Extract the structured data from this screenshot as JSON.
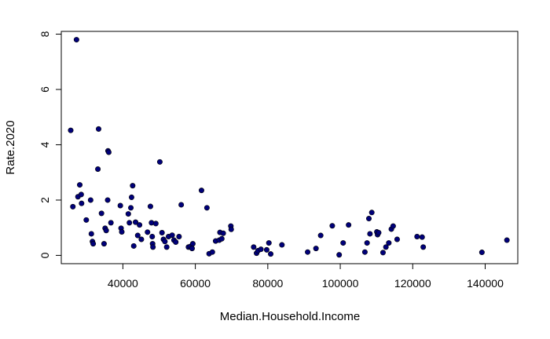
{
  "chart_data": {
    "type": "scatter",
    "xlabel": "Median.Household.Income",
    "ylabel": "Rate.2020",
    "xlim": [
      23000,
      149000
    ],
    "ylim": [
      -0.3,
      8.1
    ],
    "xticks": [
      40000,
      60000,
      80000,
      100000,
      120000,
      140000
    ],
    "yticks": [
      0,
      2,
      4,
      6,
      8
    ],
    "grid": false,
    "legend": "none",
    "point_color": "#00007a",
    "points": [
      [
        25600,
        4.52
      ],
      [
        26200,
        1.76
      ],
      [
        27200,
        7.8
      ],
      [
        27600,
        2.12
      ],
      [
        28100,
        2.55
      ],
      [
        28500,
        2.2
      ],
      [
        28600,
        1.88
      ],
      [
        29900,
        1.28
      ],
      [
        31100,
        2.0
      ],
      [
        31300,
        0.78
      ],
      [
        31600,
        0.5
      ],
      [
        31800,
        0.42
      ],
      [
        33100,
        3.12
      ],
      [
        33300,
        4.57
      ],
      [
        34100,
        1.52
      ],
      [
        34800,
        0.42
      ],
      [
        35100,
        0.98
      ],
      [
        35400,
        0.9
      ],
      [
        35800,
        2.0
      ],
      [
        35900,
        3.78
      ],
      [
        36100,
        3.73
      ],
      [
        36700,
        1.18
      ],
      [
        39300,
        1.8
      ],
      [
        39500,
        0.98
      ],
      [
        39700,
        0.85
      ],
      [
        41500,
        1.5
      ],
      [
        41800,
        1.18
      ],
      [
        42200,
        1.72
      ],
      [
        42400,
        2.1
      ],
      [
        42700,
        2.52
      ],
      [
        43000,
        0.34
      ],
      [
        43500,
        1.2
      ],
      [
        44100,
        0.72
      ],
      [
        44600,
        1.1
      ],
      [
        45100,
        0.58
      ],
      [
        46800,
        0.84
      ],
      [
        47600,
        1.77
      ],
      [
        47900,
        1.18
      ],
      [
        48100,
        0.68
      ],
      [
        48200,
        0.42
      ],
      [
        48300,
        0.3
      ],
      [
        49100,
        1.15
      ],
      [
        50200,
        3.38
      ],
      [
        50800,
        0.82
      ],
      [
        51200,
        0.58
      ],
      [
        51600,
        0.5
      ],
      [
        52100,
        0.3
      ],
      [
        52600,
        0.68
      ],
      [
        53600,
        0.73
      ],
      [
        54100,
        0.55
      ],
      [
        54600,
        0.48
      ],
      [
        55500,
        0.68
      ],
      [
        56100,
        1.83
      ],
      [
        58100,
        0.3
      ],
      [
        58600,
        0.32
      ],
      [
        59300,
        0.42
      ],
      [
        59100,
        0.25
      ],
      [
        61700,
        2.35
      ],
      [
        63200,
        1.72
      ],
      [
        63800,
        0.06
      ],
      [
        64700,
        0.12
      ],
      [
        65600,
        0.52
      ],
      [
        66600,
        0.55
      ],
      [
        66800,
        0.83
      ],
      [
        67300,
        0.6
      ],
      [
        67700,
        0.8
      ],
      [
        69800,
        1.06
      ],
      [
        69900,
        0.94
      ],
      [
        76100,
        0.3
      ],
      [
        76900,
        0.08
      ],
      [
        77300,
        0.17
      ],
      [
        78100,
        0.22
      ],
      [
        79700,
        0.2
      ],
      [
        80300,
        0.45
      ],
      [
        80800,
        0.05
      ],
      [
        83900,
        0.38
      ],
      [
        91000,
        0.12
      ],
      [
        93300,
        0.25
      ],
      [
        94600,
        0.72
      ],
      [
        97800,
        1.07
      ],
      [
        99700,
        0.02
      ],
      [
        100800,
        0.45
      ],
      [
        102300,
        1.1
      ],
      [
        106800,
        0.12
      ],
      [
        107400,
        0.45
      ],
      [
        107900,
        1.33
      ],
      [
        108200,
        0.78
      ],
      [
        108700,
        1.55
      ],
      [
        110100,
        0.85
      ],
      [
        110300,
        0.75
      ],
      [
        110600,
        0.82
      ],
      [
        111800,
        0.1
      ],
      [
        112600,
        0.3
      ],
      [
        113400,
        0.45
      ],
      [
        114100,
        0.95
      ],
      [
        114600,
        1.06
      ],
      [
        115700,
        0.58
      ],
      [
        121200,
        0.68
      ],
      [
        122600,
        0.66
      ],
      [
        122900,
        0.3
      ],
      [
        139100,
        0.11
      ],
      [
        146000,
        0.55
      ]
    ]
  }
}
